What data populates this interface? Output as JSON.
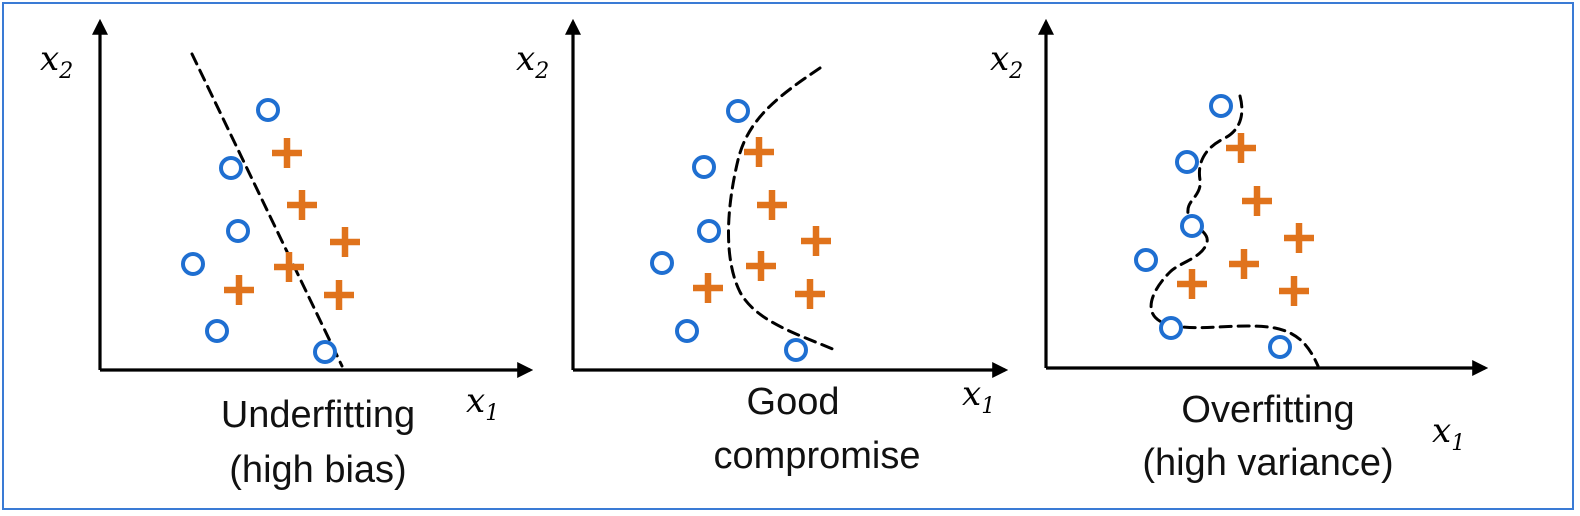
{
  "panels": [
    {
      "caption_line1": "Underfitting",
      "caption_line2": "(high bias)",
      "x_axis_var": "x",
      "x_axis_sub": "1",
      "y_axis_var": "x",
      "y_axis_sub": "2",
      "marker_colors": {
        "circle": "#1f6fd1",
        "plus": "#e0731c"
      }
    },
    {
      "caption_line1": "Good",
      "caption_line2": "compromise",
      "x_axis_var": "x",
      "x_axis_sub": "1",
      "y_axis_var": "x",
      "y_axis_sub": "2"
    },
    {
      "caption_line1": "Overfitting",
      "caption_line2": "(high variance)",
      "x_axis_var": "x",
      "x_axis_sub": "1",
      "y_axis_var": "x",
      "y_axis_sub": "2"
    }
  ]
}
